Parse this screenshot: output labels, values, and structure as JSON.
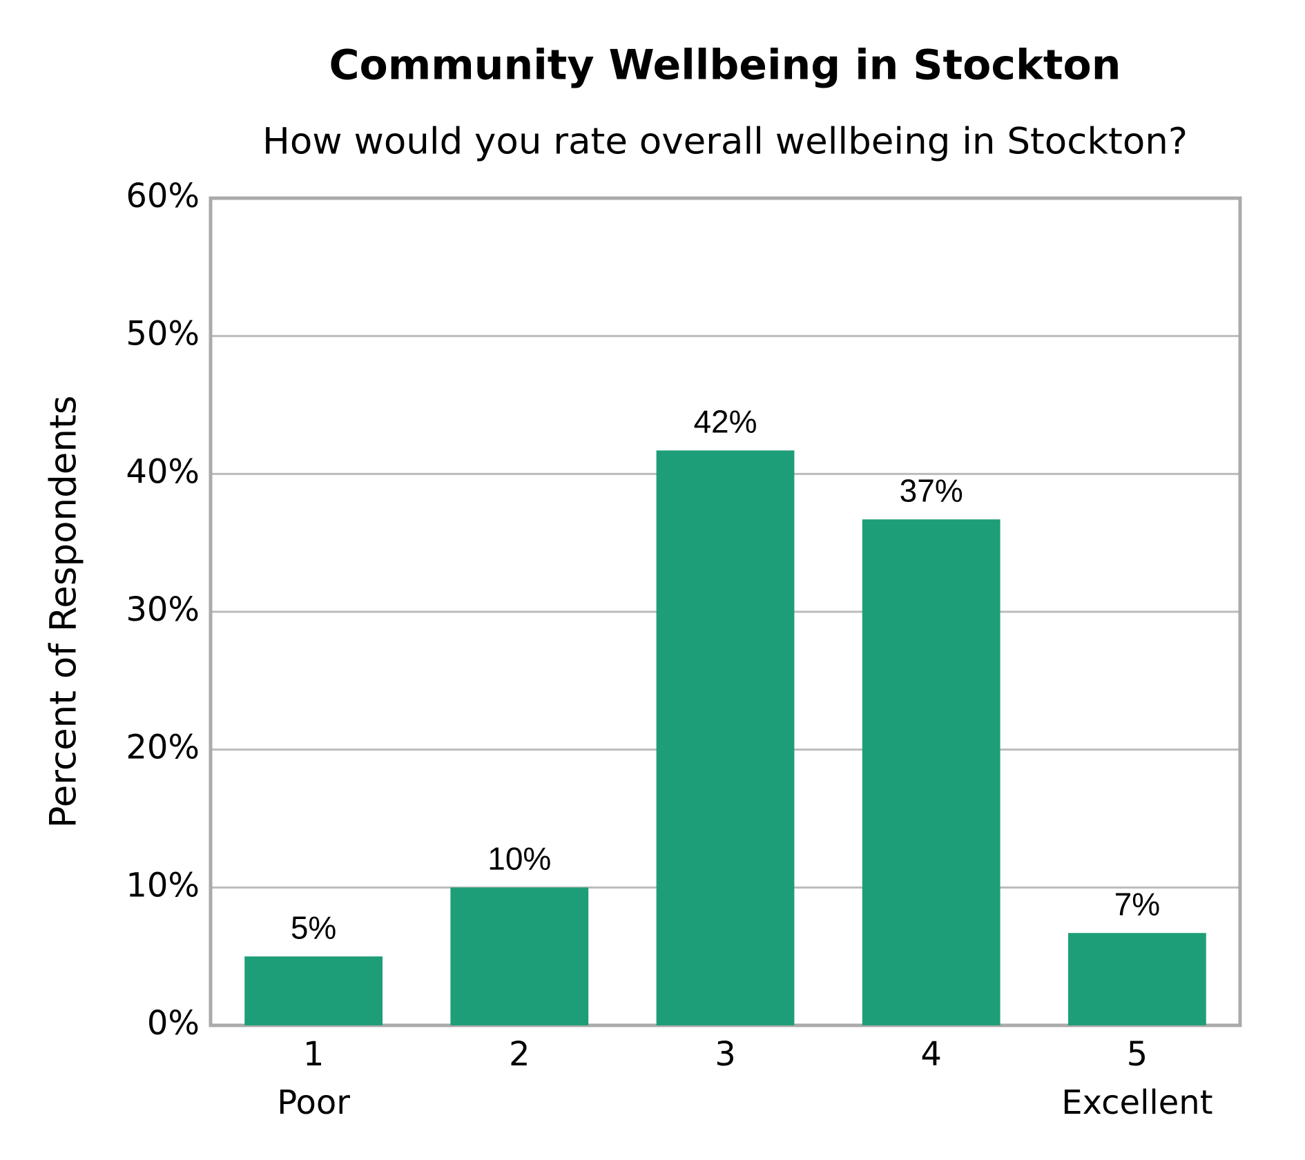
{
  "chart_data": {
    "type": "bar",
    "title": "Community Wellbeing in Stockton",
    "subtitle": "How would you rate overall wellbeing in Stockton?",
    "y_label": "Percent of Respondents",
    "categories": [
      "1",
      "2",
      "3",
      "4",
      "5"
    ],
    "category_sublabels": [
      "Poor",
      null,
      null,
      null,
      "Excellent"
    ],
    "values": [
      5,
      10,
      41.7,
      36.7,
      6.7
    ],
    "value_labels": [
      "5%",
      "10%",
      "42%",
      "37%",
      "7%"
    ],
    "color": "#1e9e78",
    "ylim": [
      0,
      60
    ],
    "yticks": [
      {
        "value": 0,
        "label": "0%"
      },
      {
        "value": 10,
        "label": "10%"
      },
      {
        "value": 20,
        "label": "20%"
      },
      {
        "value": 30,
        "label": "30%"
      },
      {
        "value": 40,
        "label": "40%"
      },
      {
        "value": 50,
        "label": "50%"
      },
      {
        "value": 60,
        "label": "60%"
      }
    ],
    "grid": true
  }
}
